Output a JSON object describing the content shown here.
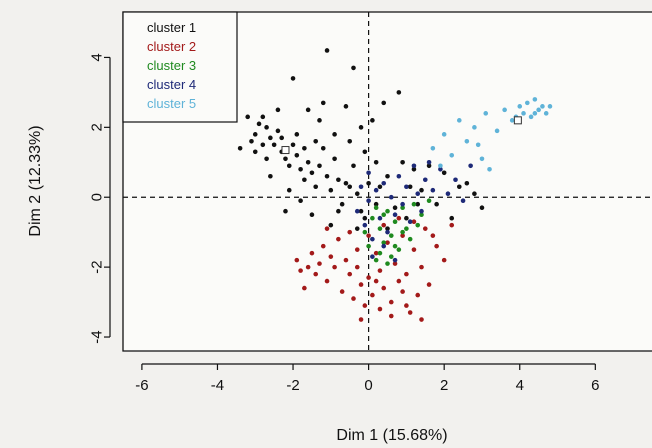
{
  "chart_data": {
    "type": "scatter",
    "title": "",
    "xlabel": "Dim 1 (15.68%)",
    "ylabel": "Dim 2 (12.33%)",
    "xlim": [
      -6.5,
      7.5
    ],
    "ylim": [
      -4.4,
      5.3
    ],
    "xticks": [
      -6,
      -4,
      -2,
      0,
      2,
      4,
      6
    ],
    "yticks": [
      -4,
      -2,
      0,
      2,
      4
    ],
    "xtick_labels": [
      "-6",
      "-4",
      "-2",
      "0",
      "2",
      "4",
      "6"
    ],
    "ytick_labels": [
      "-4",
      "-2",
      "0",
      "2",
      "4"
    ],
    "grid": false,
    "reference_lines": {
      "x": 0,
      "y": 0,
      "style": "dashed"
    },
    "legend": {
      "position": "top-left",
      "frame": true
    },
    "series": [
      {
        "name": "cluster 1",
        "color": "#111111",
        "points": [
          [
            -3.1,
            1.6
          ],
          [
            -3.0,
            1.8
          ],
          [
            -2.9,
            2.1
          ],
          [
            -2.8,
            2.3
          ],
          [
            -2.7,
            2.0
          ],
          [
            -2.6,
            1.7
          ],
          [
            -2.5,
            1.5
          ],
          [
            -2.4,
            1.9
          ],
          [
            -2.3,
            1.3
          ],
          [
            -2.2,
            1.1
          ],
          [
            -2.1,
            0.9
          ],
          [
            -2.0,
            1.5
          ],
          [
            -1.9,
            1.2
          ],
          [
            -1.8,
            0.8
          ],
          [
            -1.7,
            0.5
          ],
          [
            -1.6,
            1.0
          ],
          [
            -1.5,
            0.7
          ],
          [
            -1.4,
            0.3
          ],
          [
            -1.3,
            0.9
          ],
          [
            -1.2,
            1.4
          ],
          [
            -1.1,
            0.6
          ],
          [
            -1.0,
            0.2
          ],
          [
            -0.9,
            1.1
          ],
          [
            -0.8,
            0.5
          ],
          [
            -0.7,
            -0.2
          ],
          [
            -0.6,
            0.4
          ],
          [
            -0.5,
            1.6
          ],
          [
            -0.4,
            0.9
          ],
          [
            -0.3,
            0.1
          ],
          [
            -0.2,
            -0.4
          ],
          [
            -0.1,
            1.3
          ],
          [
            0.1,
            2.2
          ],
          [
            0.2,
            1.0
          ],
          [
            0.3,
            0.3
          ],
          [
            0.5,
            0.6
          ],
          [
            0.7,
            -0.3
          ],
          [
            0.9,
            1.0
          ],
          [
            1.2,
            0.8
          ],
          [
            1.4,
            0.2
          ],
          [
            1.6,
            0.9
          ],
          [
            1.8,
            -0.2
          ],
          [
            2.0,
            0.7
          ],
          [
            2.2,
            -0.6
          ],
          [
            2.4,
            0.3
          ],
          [
            2.6,
            0.4
          ],
          [
            2.8,
            0.1
          ],
          [
            3.0,
            -0.3
          ],
          [
            -2.0,
            3.4
          ],
          [
            -1.6,
            2.5
          ],
          [
            -1.2,
            2.7
          ],
          [
            -0.9,
            1.8
          ],
          [
            -0.6,
            2.6
          ],
          [
            -0.2,
            2.0
          ],
          [
            0.4,
            2.7
          ],
          [
            -1.1,
            4.2
          ],
          [
            -0.4,
            3.7
          ],
          [
            0.8,
            3.0
          ],
          [
            -1.3,
            2.2
          ],
          [
            -2.4,
            2.5
          ],
          [
            -2.7,
            1.1
          ],
          [
            -1.5,
            -0.5
          ],
          [
            -1.0,
            -0.8
          ],
          [
            -1.8,
            -0.1
          ],
          [
            -2.1,
            0.2
          ],
          [
            -3.4,
            1.4
          ],
          [
            -3.2,
            2.3
          ],
          [
            -2.2,
            -0.4
          ],
          [
            -1.4,
            1.6
          ],
          [
            -0.3,
            -0.9
          ],
          [
            0.0,
            0.4
          ],
          [
            -0.1,
            -0.6
          ],
          [
            0.5,
            -0.9
          ],
          [
            1.0,
            -0.6
          ],
          [
            1.1,
            0.3
          ],
          [
            -3.0,
            1.3
          ],
          [
            -2.3,
            1.7
          ],
          [
            -1.9,
            1.8
          ],
          [
            -0.8,
            -0.4
          ],
          [
            1.3,
            -0.2
          ],
          [
            -2.6,
            0.6
          ],
          [
            -0.5,
            0.3
          ],
          [
            -2.8,
            1.5
          ],
          [
            -1.7,
            1.4
          ],
          [
            0.2,
            -0.2
          ]
        ]
      },
      {
        "name": "cluster 2",
        "color": "#a31a1a",
        "points": [
          [
            -1.9,
            -1.8
          ],
          [
            -1.8,
            -2.1
          ],
          [
            -1.6,
            -2.0
          ],
          [
            -1.5,
            -1.6
          ],
          [
            -1.4,
            -2.2
          ],
          [
            -1.3,
            -1.9
          ],
          [
            -1.2,
            -1.4
          ],
          [
            -1.1,
            -2.4
          ],
          [
            -1.0,
            -1.7
          ],
          [
            -0.9,
            -2.0
          ],
          [
            -0.8,
            -1.2
          ],
          [
            -0.7,
            -2.7
          ],
          [
            -0.6,
            -1.8
          ],
          [
            -0.5,
            -2.2
          ],
          [
            -0.4,
            -2.9
          ],
          [
            -0.3,
            -1.5
          ],
          [
            -0.2,
            -2.5
          ],
          [
            -0.1,
            -3.1
          ],
          [
            0.0,
            -2.3
          ],
          [
            0.1,
            -2.8
          ],
          [
            0.2,
            -1.6
          ],
          [
            0.3,
            -2.1
          ],
          [
            0.4,
            -2.6
          ],
          [
            0.5,
            -1.3
          ],
          [
            0.6,
            -3.0
          ],
          [
            0.7,
            -1.9
          ],
          [
            0.8,
            -2.4
          ],
          [
            0.9,
            -1.1
          ],
          [
            1.0,
            -2.2
          ],
          [
            1.1,
            -3.3
          ],
          [
            1.2,
            -1.5
          ],
          [
            1.3,
            -2.8
          ],
          [
            1.4,
            -2.0
          ],
          [
            1.5,
            -0.9
          ],
          [
            1.6,
            -2.5
          ],
          [
            1.8,
            -1.4
          ],
          [
            2.0,
            -1.8
          ],
          [
            2.2,
            -0.8
          ],
          [
            -1.7,
            -2.6
          ],
          [
            -1.1,
            -0.9
          ],
          [
            -0.2,
            -3.5
          ],
          [
            0.3,
            -3.2
          ],
          [
            0.6,
            -3.4
          ],
          [
            1.0,
            -3.1
          ],
          [
            1.4,
            -3.5
          ],
          [
            0.0,
            -1.1
          ],
          [
            0.4,
            -0.8
          ],
          [
            0.8,
            -0.6
          ],
          [
            -0.5,
            -1.0
          ],
          [
            1.7,
            -1.1
          ],
          [
            -0.3,
            -2.0
          ],
          [
            0.2,
            -2.4
          ],
          [
            0.9,
            -2.7
          ],
          [
            1.2,
            -0.7
          ]
        ]
      },
      {
        "name": "cluster 3",
        "color": "#1f8a1f",
        "points": [
          [
            -0.1,
            -1.0
          ],
          [
            0.0,
            -1.4
          ],
          [
            0.1,
            -0.6
          ],
          [
            0.2,
            -1.8
          ],
          [
            0.3,
            -0.9
          ],
          [
            0.4,
            -1.3
          ],
          [
            0.5,
            -0.4
          ],
          [
            0.6,
            -1.1
          ],
          [
            0.7,
            -0.7
          ],
          [
            0.8,
            -1.5
          ],
          [
            0.9,
            -0.3
          ],
          [
            1.0,
            -0.9
          ],
          [
            1.1,
            -1.2
          ],
          [
            1.2,
            -0.2
          ],
          [
            1.4,
            -0.5
          ],
          [
            1.6,
            -0.1
          ],
          [
            0.3,
            -1.6
          ],
          [
            0.5,
            -1.9
          ],
          [
            0.7,
            -1.4
          ],
          [
            0.2,
            -0.3
          ],
          [
            0.9,
            -1.0
          ],
          [
            0.4,
            -0.5
          ],
          [
            1.3,
            -0.8
          ],
          [
            0.6,
            -1.7
          ]
        ]
      },
      {
        "name": "cluster 4",
        "color": "#1e2a78",
        "points": [
          [
            -0.3,
            -0.4
          ],
          [
            -0.1,
            -0.8
          ],
          [
            0.0,
            -0.1
          ],
          [
            0.1,
            -1.2
          ],
          [
            0.2,
            0.2
          ],
          [
            0.3,
            -0.6
          ],
          [
            0.4,
            0.4
          ],
          [
            0.5,
            -1.0
          ],
          [
            0.6,
            0.0
          ],
          [
            0.7,
            -0.5
          ],
          [
            0.8,
            0.6
          ],
          [
            0.9,
            -0.2
          ],
          [
            1.0,
            0.3
          ],
          [
            1.1,
            -0.7
          ],
          [
            1.2,
            0.9
          ],
          [
            1.3,
            0.1
          ],
          [
            1.4,
            -0.4
          ],
          [
            1.5,
            0.5
          ],
          [
            1.7,
            0.2
          ],
          [
            1.9,
            0.8
          ],
          [
            2.1,
            0.1
          ],
          [
            2.3,
            0.5
          ],
          [
            2.5,
            -0.1
          ],
          [
            0.1,
            -1.7
          ],
          [
            0.4,
            -1.4
          ],
          [
            0.7,
            -1.8
          ],
          [
            -0.2,
            0.3
          ],
          [
            0.0,
            0.7
          ],
          [
            1.6,
            1.0
          ],
          [
            2.7,
            0.9
          ]
        ]
      },
      {
        "name": "cluster 5",
        "color": "#5fb3d8",
        "points": [
          [
            1.7,
            1.4
          ],
          [
            2.0,
            1.8
          ],
          [
            2.2,
            1.2
          ],
          [
            2.4,
            2.2
          ],
          [
            2.6,
            1.6
          ],
          [
            2.8,
            2.0
          ],
          [
            3.0,
            1.1
          ],
          [
            3.1,
            2.4
          ],
          [
            3.2,
            0.8
          ],
          [
            3.4,
            1.9
          ],
          [
            3.6,
            2.5
          ],
          [
            3.8,
            2.2
          ],
          [
            4.0,
            2.6
          ],
          [
            4.1,
            2.4
          ],
          [
            4.2,
            2.7
          ],
          [
            4.3,
            2.3
          ],
          [
            4.4,
            2.8
          ],
          [
            4.5,
            2.5
          ],
          [
            4.6,
            2.6
          ],
          [
            4.7,
            2.4
          ],
          [
            4.8,
            2.6
          ],
          [
            3.9,
            2.3
          ],
          [
            4.4,
            2.4
          ],
          [
            2.9,
            1.5
          ],
          [
            1.9,
            0.9
          ]
        ]
      }
    ],
    "centroids": [
      {
        "series": "cluster 1",
        "x": -2.2,
        "y": 1.35
      },
      {
        "series": "cluster 5",
        "x": 3.95,
        "y": 2.2
      }
    ]
  }
}
